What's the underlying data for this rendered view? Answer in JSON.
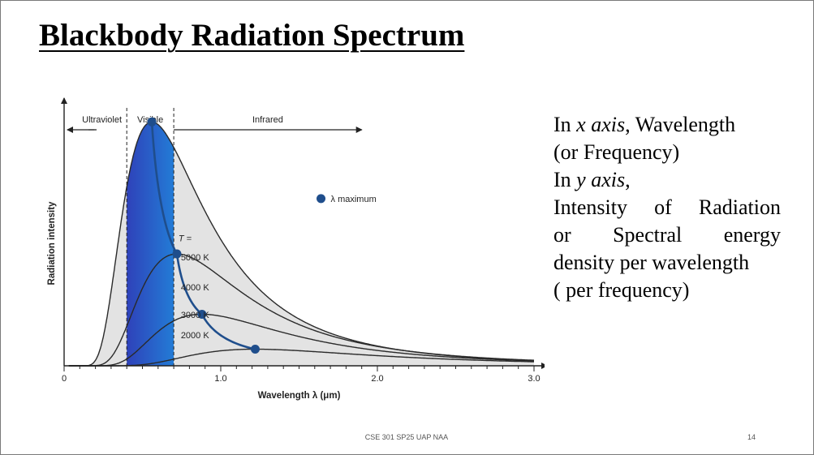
{
  "slide": {
    "title": "Blackbody Radiation Spectrum",
    "footer": "CSE 301 SP25 UAP NAA",
    "page_number": "14"
  },
  "description": {
    "line1_pre": "In ",
    "line1_em": "x axis",
    "line1_post": ", Wavelength",
    "line2": "(or  Frequency)",
    "line3_pre": "In ",
    "line3_em": "y axis",
    "line3_post": ",",
    "line4_words": [
      "Intensity",
      "of",
      "Radiation"
    ],
    "line5_words": [
      "or",
      "Spectral",
      "energy"
    ],
    "line6": "density per wavelength",
    "line7": "( per frequency)"
  },
  "chart_data": {
    "type": "line",
    "xlabel": "Wavelength λ (μm)",
    "ylabel": "Radiation intensity",
    "xlim": [
      0,
      3.0
    ],
    "ylim": [
      0,
      1.0
    ],
    "x_ticks": [
      {
        "value": 0,
        "label": "0"
      },
      {
        "value": 1.0,
        "label": "1.0"
      },
      {
        "value": 2.0,
        "label": "2.0"
      },
      {
        "value": 3.0,
        "label": "3.0"
      }
    ],
    "grid": false,
    "regions": [
      {
        "name": "Ultraviolet",
        "from": 0.0,
        "to": 0.4
      },
      {
        "name": "Visible",
        "from": 0.4,
        "to": 0.7
      },
      {
        "name": "Infrared",
        "from": 0.7,
        "to": 1.9
      }
    ],
    "temperature_label": "T =",
    "series": [
      {
        "name": "5000 K",
        "peak_wavelength": 0.56,
        "peak_intensity": 0.97,
        "peak_shown": true
      },
      {
        "name": "4000 K",
        "peak_wavelength": 0.72,
        "peak_intensity": 0.445,
        "peak_shown": true
      },
      {
        "name": "3000 K",
        "peak_wavelength": 0.88,
        "peak_intensity": 0.205,
        "peak_shown": true
      },
      {
        "name": "2000 K",
        "peak_wavelength": 1.22,
        "peak_intensity": 0.066,
        "peak_shown": true
      }
    ],
    "legend": {
      "label": "λ maximum",
      "placement": "right",
      "color": "#1f4e8c"
    },
    "colors": {
      "curve": "#2a2a2a",
      "fill": "#e3e3e3",
      "peak_line": "#1f4e8c",
      "peak_dot": "#1f4e8c"
    }
  }
}
